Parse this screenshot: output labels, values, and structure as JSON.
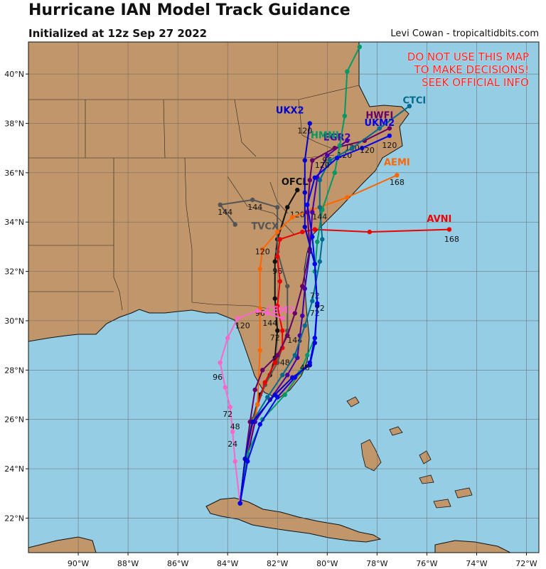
{
  "header": {
    "title": "Hurricane IAN Model Track Guidance",
    "subtitle": "Initialized at 12z Sep 27 2022",
    "credit": "Levi Cowan - tropicaltidbits.com"
  },
  "warning": {
    "lines": [
      "DO NOT USE THIS MAP",
      "TO MAKE DECISIONS!",
      "SEEK OFFICIAL INFO"
    ],
    "color": "#ff1a1a"
  },
  "map": {
    "lon_range": [
      -92,
      -71.5
    ],
    "lat_range": [
      20.6,
      41.3
    ],
    "lon_ticks": [
      -90,
      -88,
      -86,
      -84,
      -82,
      -80,
      -78,
      -76,
      -74,
      -72
    ],
    "lon_tick_labels": [
      "90°W",
      "88°W",
      "86°W",
      "84°W",
      "82°W",
      "80°W",
      "78°W",
      "76°W",
      "74°W",
      "72°W"
    ],
    "lat_ticks": [
      22,
      24,
      26,
      28,
      30,
      32,
      34,
      36,
      38,
      40
    ],
    "lat_tick_labels": [
      "22°N",
      "24°N",
      "26°N",
      "28°N",
      "30°N",
      "32°N",
      "34°N",
      "36°N",
      "38°N",
      "40°N"
    ],
    "ocean_color": "#95cde5",
    "land_color": "#c0966a",
    "grid": true
  },
  "tracks": [
    {
      "name": "OFCL",
      "color": "#111111",
      "label_at": [
        -81.3,
        35.5
      ],
      "points": [
        [
          -83.5,
          22.6
        ],
        [
          -83.3,
          24.4
        ],
        [
          -83.0,
          26.0
        ],
        [
          -82.7,
          27.0
        ],
        [
          -82.3,
          27.8
        ],
        [
          -82.1,
          28.5
        ],
        [
          -82.0,
          29.6
        ],
        [
          -82.1,
          30.9
        ],
        [
          -82.1,
          32.4
        ],
        [
          -82.0,
          33.3
        ],
        [
          -81.6,
          34.6
        ],
        [
          -81.2,
          35.3
        ]
      ],
      "hour_labels": [
        [
          "48",
          -81.7,
          28.2
        ],
        [
          "72",
          -82.1,
          29.2
        ],
        [
          "96",
          -82.0,
          31.9
        ],
        [
          "120",
          -81.2,
          34.2
        ]
      ]
    },
    {
      "name": "TVCX",
      "color": "#555555",
      "label_at": [
        -82.5,
        33.7
      ],
      "points": [
        [
          -83.5,
          22.6
        ],
        [
          -83.3,
          24.4
        ],
        [
          -83.0,
          26.0
        ],
        [
          -82.5,
          27.4
        ],
        [
          -82.0,
          28.3
        ],
        [
          -81.6,
          29.6
        ],
        [
          -81.6,
          31.4
        ],
        [
          -82.0,
          32.8
        ],
        [
          -82.0,
          34.6
        ],
        [
          -83.0,
          34.9
        ],
        [
          -84.3,
          34.7
        ],
        [
          -83.7,
          33.9
        ]
      ],
      "hour_labels": [
        [
          "144",
          -84.1,
          34.3
        ],
        [
          "144",
          -82.9,
          34.5
        ],
        [
          "144",
          -81.3,
          29.1
        ]
      ]
    },
    {
      "name": "AVNI",
      "color": "#ee0000",
      "label_at": [
        -75.5,
        34.0
      ],
      "points": [
        [
          -83.5,
          22.6
        ],
        [
          -83.2,
          24.6
        ],
        [
          -82.8,
          26.6
        ],
        [
          -82.5,
          27.5
        ],
        [
          -82.1,
          28.3
        ],
        [
          -81.8,
          28.9
        ],
        [
          -81.8,
          29.6
        ],
        [
          -82.0,
          30.6
        ],
        [
          -81.9,
          31.6
        ],
        [
          -82.0,
          32.6
        ],
        [
          -81.9,
          33.3
        ],
        [
          -81.0,
          33.6
        ],
        [
          -80.5,
          33.7
        ],
        [
          -78.3,
          33.6
        ],
        [
          -75.1,
          33.7
        ]
      ],
      "hour_labels": [
        [
          "168",
          -75.0,
          33.2
        ]
      ]
    },
    {
      "name": "AEMI",
      "color": "#ff6600",
      "label_at": [
        -77.2,
        36.3
      ],
      "points": [
        [
          -83.5,
          22.6
        ],
        [
          -83.3,
          24.4
        ],
        [
          -82.9,
          26.0
        ],
        [
          -82.8,
          26.6
        ],
        [
          -82.7,
          28.8
        ],
        [
          -82.7,
          30.5
        ],
        [
          -82.7,
          32.1
        ],
        [
          -82.6,
          32.9
        ],
        [
          -82.0,
          33.6
        ],
        [
          -81.4,
          34.2
        ],
        [
          -80.6,
          34.5
        ],
        [
          -79.2,
          35.0
        ],
        [
          -77.2,
          35.9
        ]
      ],
      "hour_labels": [
        [
          "168",
          -77.2,
          35.5
        ],
        [
          "120",
          -82.6,
          32.7
        ],
        [
          "96",
          -82.7,
          30.2
        ]
      ]
    },
    {
      "name": "CEM2",
      "color": "#ff66cc",
      "label_at": [
        -81.9,
        30.3
      ],
      "points": [
        [
          -83.5,
          22.6
        ],
        [
          -83.7,
          24.3
        ],
        [
          -83.8,
          25.5
        ],
        [
          -83.9,
          26.5
        ],
        [
          -84.1,
          27.3
        ],
        [
          -84.3,
          28.3
        ],
        [
          -84.0,
          29.3
        ],
        [
          -83.6,
          30.1
        ],
        [
          -82.8,
          30.4
        ],
        [
          -82.4,
          30.3
        ],
        [
          -81.8,
          30.1
        ]
      ],
      "hour_labels": [
        [
          "24",
          -83.8,
          24.9
        ],
        [
          "48",
          -83.7,
          25.6
        ],
        [
          "72",
          -84.0,
          26.1
        ],
        [
          "96",
          -84.4,
          27.6
        ],
        [
          "120",
          -83.4,
          29.7
        ],
        [
          "144",
          -82.3,
          29.8
        ]
      ]
    },
    {
      "name": "EGR2",
      "color": "#4400aa",
      "label_at": [
        -79.6,
        37.3
      ],
      "points": [
        [
          -83.5,
          22.6
        ],
        [
          -83.2,
          24.5
        ],
        [
          -82.9,
          25.9
        ],
        [
          -82.3,
          26.8
        ],
        [
          -81.6,
          27.8
        ],
        [
          -81.2,
          28.5
        ],
        [
          -81.1,
          29.4
        ],
        [
          -81.0,
          30.2
        ],
        [
          -80.9,
          31.3
        ],
        [
          -80.7,
          32.8
        ],
        [
          -80.6,
          34.4
        ],
        [
          -80.4,
          35.8
        ],
        [
          -80.0,
          36.7
        ],
        [
          -79.2,
          37.3
        ]
      ],
      "hour_labels": [
        [
          "120",
          -79.0,
          36.9
        ],
        [
          "96",
          -80.0,
          36.4
        ]
      ]
    },
    {
      "name": "HWFI",
      "color": "#660066",
      "label_at": [
        -77.9,
        38.2
      ],
      "points": [
        [
          -83.5,
          22.6
        ],
        [
          -83.3,
          24.4
        ],
        [
          -83.1,
          25.9
        ],
        [
          -82.9,
          27.2
        ],
        [
          -82.6,
          28.0
        ],
        [
          -82.0,
          28.6
        ],
        [
          -81.6,
          29.4
        ],
        [
          -81.3,
          30.3
        ],
        [
          -81.0,
          31.4
        ],
        [
          -80.7,
          32.9
        ],
        [
          -80.8,
          34.4
        ],
        [
          -80.7,
          35.7
        ],
        [
          -80.6,
          36.5
        ],
        [
          -79.7,
          37.0
        ],
        [
          -78.5,
          37.3
        ],
        [
          -77.5,
          37.8
        ]
      ],
      "hour_labels": [
        [
          "120",
          -77.5,
          37.0
        ]
      ]
    },
    {
      "name": "HMNI",
      "color": "#009966",
      "label_at": [
        -80.1,
        37.4
      ],
      "points": [
        [
          -83.5,
          22.6
        ],
        [
          -83.2,
          24.6
        ],
        [
          -82.6,
          26.0
        ],
        [
          -81.7,
          27.0
        ],
        [
          -81.1,
          27.9
        ],
        [
          -80.8,
          28.6
        ],
        [
          -80.5,
          29.3
        ],
        [
          -80.4,
          30.6
        ],
        [
          -80.5,
          32.0
        ],
        [
          -80.4,
          33.2
        ],
        [
          -80.2,
          34.5
        ],
        [
          -79.7,
          36.0
        ],
        [
          -79.5,
          37.1
        ],
        [
          -79.3,
          38.3
        ],
        [
          -79.2,
          40.1
        ],
        [
          -78.7,
          41.1
        ]
      ],
      "hour_labels": [
        [
          "120",
          -79.3,
          36.6
        ],
        [
          "72",
          -80.5,
          30.2
        ]
      ]
    },
    {
      "name": "CTCI",
      "color": "#006b8f",
      "label_at": [
        -76.5,
        38.8
      ],
      "points": [
        [
          -83.5,
          22.6
        ],
        [
          -83.3,
          24.4
        ],
        [
          -83.0,
          25.9
        ],
        [
          -82.4,
          26.9
        ],
        [
          -81.8,
          27.8
        ],
        [
          -81.3,
          28.6
        ],
        [
          -80.9,
          29.8
        ],
        [
          -80.6,
          30.8
        ],
        [
          -80.3,
          32.4
        ],
        [
          -80.2,
          33.3
        ],
        [
          -80.3,
          34.6
        ],
        [
          -80.3,
          35.7
        ],
        [
          -79.9,
          36.5
        ],
        [
          -79.0,
          37.0
        ],
        [
          -77.9,
          37.8
        ],
        [
          -76.7,
          38.7
        ]
      ],
      "hour_labels": [
        [
          "144",
          -80.3,
          34.1
        ]
      ]
    },
    {
      "name": "UKX2",
      "color": "#0000cc",
      "label_at": [
        -81.5,
        38.4
      ],
      "points": [
        [
          -83.5,
          22.6
        ],
        [
          -83.3,
          24.4
        ],
        [
          -83.0,
          25.9
        ],
        [
          -82.1,
          27.0
        ],
        [
          -81.4,
          27.7
        ],
        [
          -80.7,
          28.2
        ],
        [
          -80.5,
          29.1
        ],
        [
          -80.4,
          30.6
        ],
        [
          -80.5,
          32.3
        ],
        [
          -80.9,
          33.8
        ],
        [
          -80.9,
          35.2
        ],
        [
          -80.9,
          36.5
        ],
        [
          -80.7,
          38.0
        ]
      ],
      "hour_labels": [
        [
          "120",
          -80.9,
          37.6
        ],
        [
          "72",
          -80.5,
          30.9
        ]
      ]
    },
    {
      "name": "UKM2",
      "color": "#0000ee",
      "label_at": [
        -77.9,
        37.9
      ],
      "points": [
        [
          -83.5,
          22.6
        ],
        [
          -83.2,
          24.3
        ],
        [
          -82.7,
          25.8
        ],
        [
          -82.0,
          26.9
        ],
        [
          -81.3,
          27.7
        ],
        [
          -80.7,
          28.3
        ],
        [
          -80.5,
          29.3
        ],
        [
          -80.4,
          30.7
        ],
        [
          -80.5,
          32.3
        ],
        [
          -80.6,
          33.4
        ],
        [
          -80.8,
          34.7
        ],
        [
          -80.5,
          35.8
        ],
        [
          -79.6,
          36.6
        ],
        [
          -78.6,
          37.0
        ],
        [
          -77.5,
          37.5
        ]
      ],
      "hour_labels": [
        [
          "120",
          -78.4,
          36.8
        ],
        [
          "120",
          -80.2,
          36.2
        ],
        [
          "72",
          -80.3,
          30.4
        ],
        [
          "48",
          -80.9,
          28.0
        ]
      ]
    }
  ]
}
